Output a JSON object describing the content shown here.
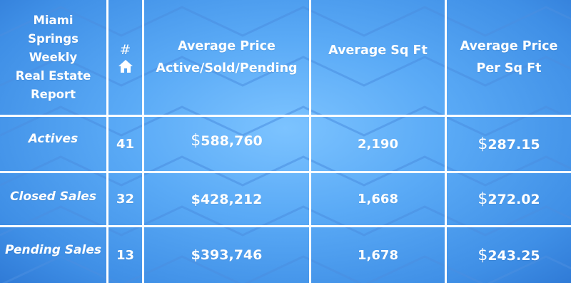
{
  "report": {
    "title_lines": [
      "Miami",
      "Springs",
      "Weekly",
      "Real Estate",
      "Report"
    ],
    "count_header": {
      "symbol": "#",
      "icon": "home-icon"
    },
    "headers": {
      "avg_price": [
        "Average Price",
        "Active/Sold/Pending"
      ],
      "avg_sqft": "Average Sq Ft",
      "avg_price_sqft": [
        "Average Price",
        "Per Sq Ft"
      ]
    },
    "rows": [
      {
        "label": "Actives",
        "count": "41",
        "avg_price": "588,760",
        "avg_sqft": "2,190",
        "price_per_sqft": "287.15"
      },
      {
        "label": "Closed Sales",
        "count": "32",
        "avg_price": "$428,212",
        "avg_sqft": "1,668",
        "price_per_sqft": "272.02"
      },
      {
        "label": "Pending Sales",
        "count": "13",
        "avg_price": "$393,746",
        "avg_sqft": "1,678",
        "price_per_sqft": "243.25"
      }
    ],
    "dollar_sign": "$",
    "colors": {
      "background": "#5aaaf6",
      "grid_lines": "#ffffff",
      "text": "#ffffff",
      "pattern": "#4a8ee0"
    }
  }
}
